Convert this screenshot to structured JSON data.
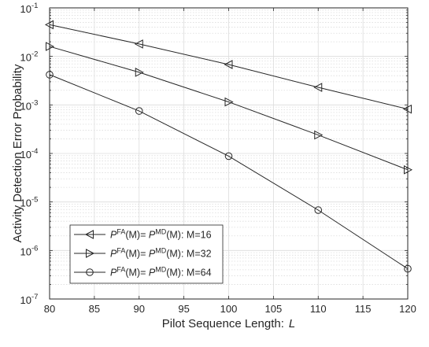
{
  "chart_data": {
    "type": "line",
    "title": "",
    "xlabel": "Pilot Sequence Length:",
    "xlabel_var": "L",
    "ylabel": "Activity Detection Error Probability",
    "x": [
      80,
      90,
      100,
      110,
      120
    ],
    "xlim": [
      80,
      120
    ],
    "xticks": [
      80,
      85,
      90,
      95,
      100,
      105,
      110,
      115,
      120
    ],
    "ylim": [
      1e-07,
      0.1
    ],
    "yscale": "log",
    "yticks": [
      {
        "mantissa": "10",
        "exp": "-7",
        "value": 1e-07
      },
      {
        "mantissa": "10",
        "exp": "-6",
        "value": 1e-06
      },
      {
        "mantissa": "10",
        "exp": "-5",
        "value": 1e-05
      },
      {
        "mantissa": "10",
        "exp": "-4",
        "value": 0.0001
      },
      {
        "mantissa": "10",
        "exp": "-3",
        "value": 0.001
      },
      {
        "mantissa": "10",
        "exp": "-2",
        "value": 0.01
      },
      {
        "mantissa": "10",
        "exp": "-1",
        "value": 0.1
      }
    ],
    "grid": true,
    "legend_position": "bottom-left",
    "series": [
      {
        "label_parts": [
          "P",
          "FA",
          "(M)= ",
          "P",
          "MD",
          "(M): M=16"
        ],
        "marker": "triangle-left",
        "values": [
          0.045,
          0.018,
          0.0068,
          0.0023,
          0.00082
        ]
      },
      {
        "label_parts": [
          "P",
          "FA",
          "(M)= ",
          "P",
          "MD",
          "(M): M=32"
        ],
        "marker": "triangle-right",
        "values": [
          0.016,
          0.0047,
          0.00115,
          0.00024,
          4.6e-05
        ]
      },
      {
        "label_parts": [
          "P",
          "FA",
          "(M)= ",
          "P",
          "MD",
          "(M): M=64"
        ],
        "marker": "circle",
        "values": [
          0.0042,
          0.00075,
          8.8e-05,
          6.8e-06,
          4.2e-07
        ]
      }
    ],
    "colors": {
      "line": "#262626",
      "axes": "#262626",
      "grid": "#dcdcdc",
      "background": "#ffffff"
    }
  }
}
